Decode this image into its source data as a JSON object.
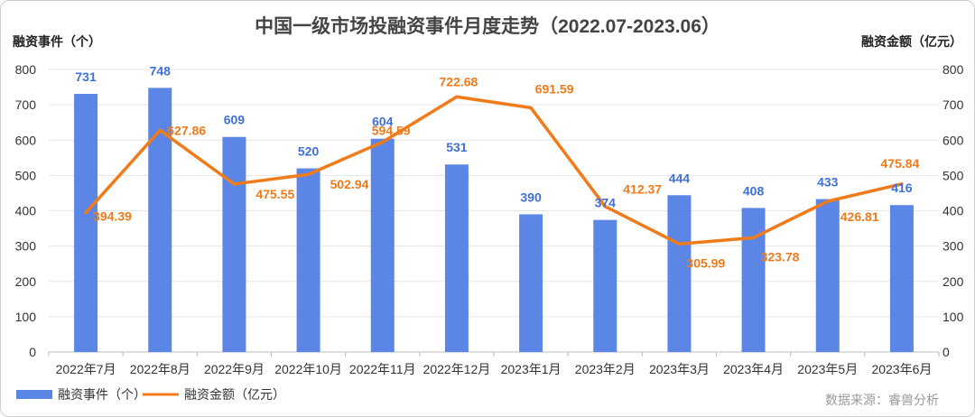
{
  "chart_data": {
    "type": "bar",
    "title": "中国一级市场投融资事件月度走势（2022.07-2023.06）",
    "ylabel_left": "融资事件（个）",
    "ylabel_right": "融资金额（亿元）",
    "ylim": [
      0,
      800
    ],
    "yticks": [
      "0",
      "100",
      "200",
      "300",
      "400",
      "500",
      "600",
      "700",
      "800"
    ],
    "categories": [
      "2022年7月",
      "2022年8月",
      "2022年9月",
      "2022年10月",
      "2022年11月",
      "2022年12月",
      "2023年1月",
      "2023年2月",
      "2023年3月",
      "2023年4月",
      "2023年5月",
      "2023年6月"
    ],
    "series": [
      {
        "name": "融资事件（个）",
        "type": "bar",
        "axis": "left",
        "color": "#5b86e5",
        "values": [
          731,
          748,
          609,
          520,
          604,
          531,
          390,
          374,
          444,
          408,
          433,
          416
        ],
        "labels": [
          "731",
          "748",
          "609",
          "520",
          "604",
          "531",
          "390",
          "374",
          "444",
          "408",
          "433",
          "416"
        ]
      },
      {
        "name": "融资金额（亿元）",
        "type": "line",
        "axis": "right",
        "color": "#f07b1a",
        "values": [
          394.39,
          627.86,
          475.55,
          502.94,
          594.59,
          722.68,
          691.59,
          412.37,
          305.99,
          323.78,
          426.81,
          475.84
        ],
        "labels": [
          "394.39",
          "627.86",
          "475.55",
          "502.94",
          "594.59",
          "722.68",
          "691.59",
          "412.37",
          "305.99",
          "323.78",
          "426.81",
          "475.84"
        ]
      }
    ],
    "legend_position": "bottom-left",
    "source": "数据来源：睿兽分析"
  }
}
